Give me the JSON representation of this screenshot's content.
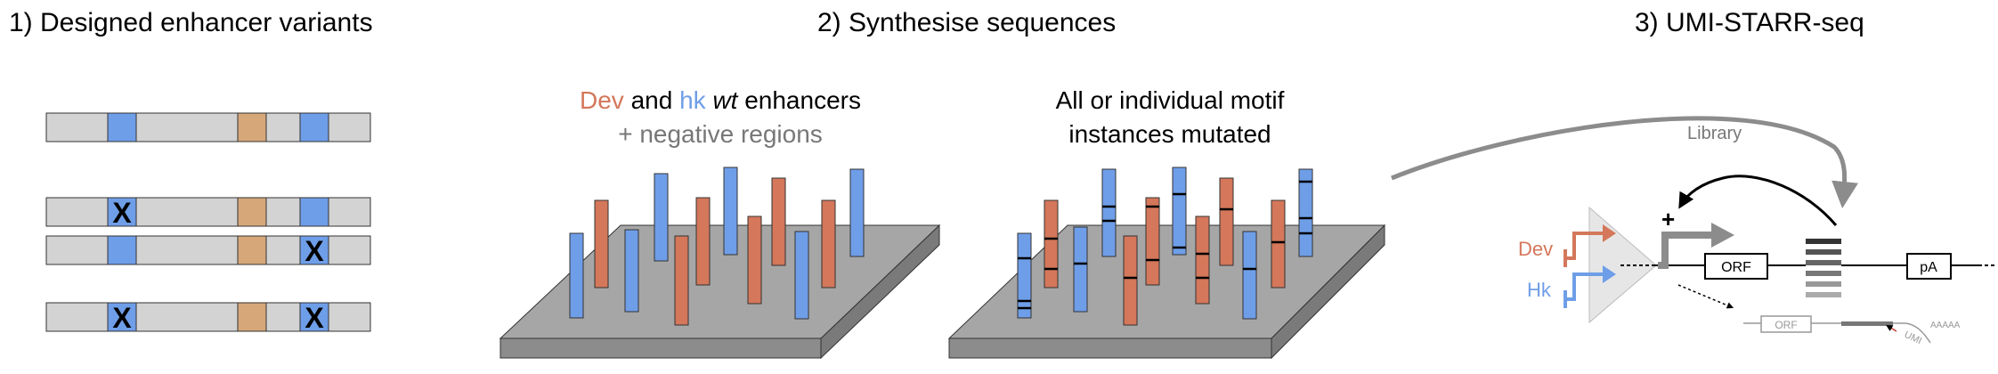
{
  "panel1": {
    "title": "1) Designed enhancer variants",
    "mutation_mark": "X"
  },
  "panel2": {
    "title": "2) Synthesise sequences",
    "left_caption": {
      "dev": "Dev",
      "and": " and ",
      "hk": "hk",
      "wt": "wt",
      "enhancers": " enhancers",
      "line2": "+ negative regions"
    },
    "right_caption": {
      "line1": "All or individual motif",
      "line2": "instances mutated"
    }
  },
  "panel3": {
    "title": "3) UMI-STARR-seq",
    "library_label": "Library",
    "plus": "+",
    "dev_label": "Dev",
    "hk_label": "Hk",
    "orf_label": "ORF",
    "pa_label": "pA",
    "orf_faded_label": "ORF",
    "umi_label": "UMI",
    "polya_tail": "AAAAA"
  },
  "colors": {
    "dev": "#d4775a",
    "hk": "#6f9ee8",
    "motif_tan": "#d6a779",
    "bar_gray": "#d3d3d3",
    "plate_top": "#a6a6a6",
    "plate_side": "#8c8c8c",
    "arrow_gray": "#8c8c8c"
  }
}
